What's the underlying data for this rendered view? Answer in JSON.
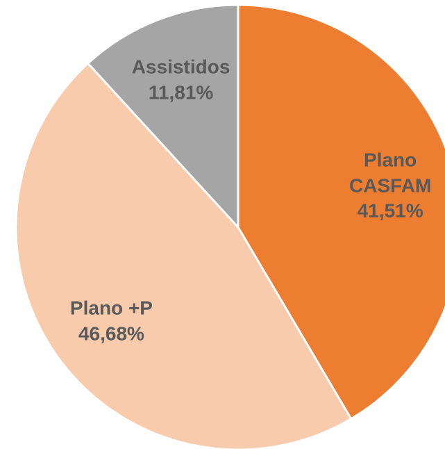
{
  "chart_data": {
    "type": "pie",
    "categories": [
      "Plano CASFAM",
      "Plano +P",
      "Assistidos"
    ],
    "values": [
      41.51,
      46.68,
      11.81
    ],
    "value_labels": [
      "41,51%",
      "46,68%",
      "11,81%"
    ],
    "colors": [
      "#ED7D31",
      "#F8CBAD",
      "#A5A5A5"
    ]
  }
}
